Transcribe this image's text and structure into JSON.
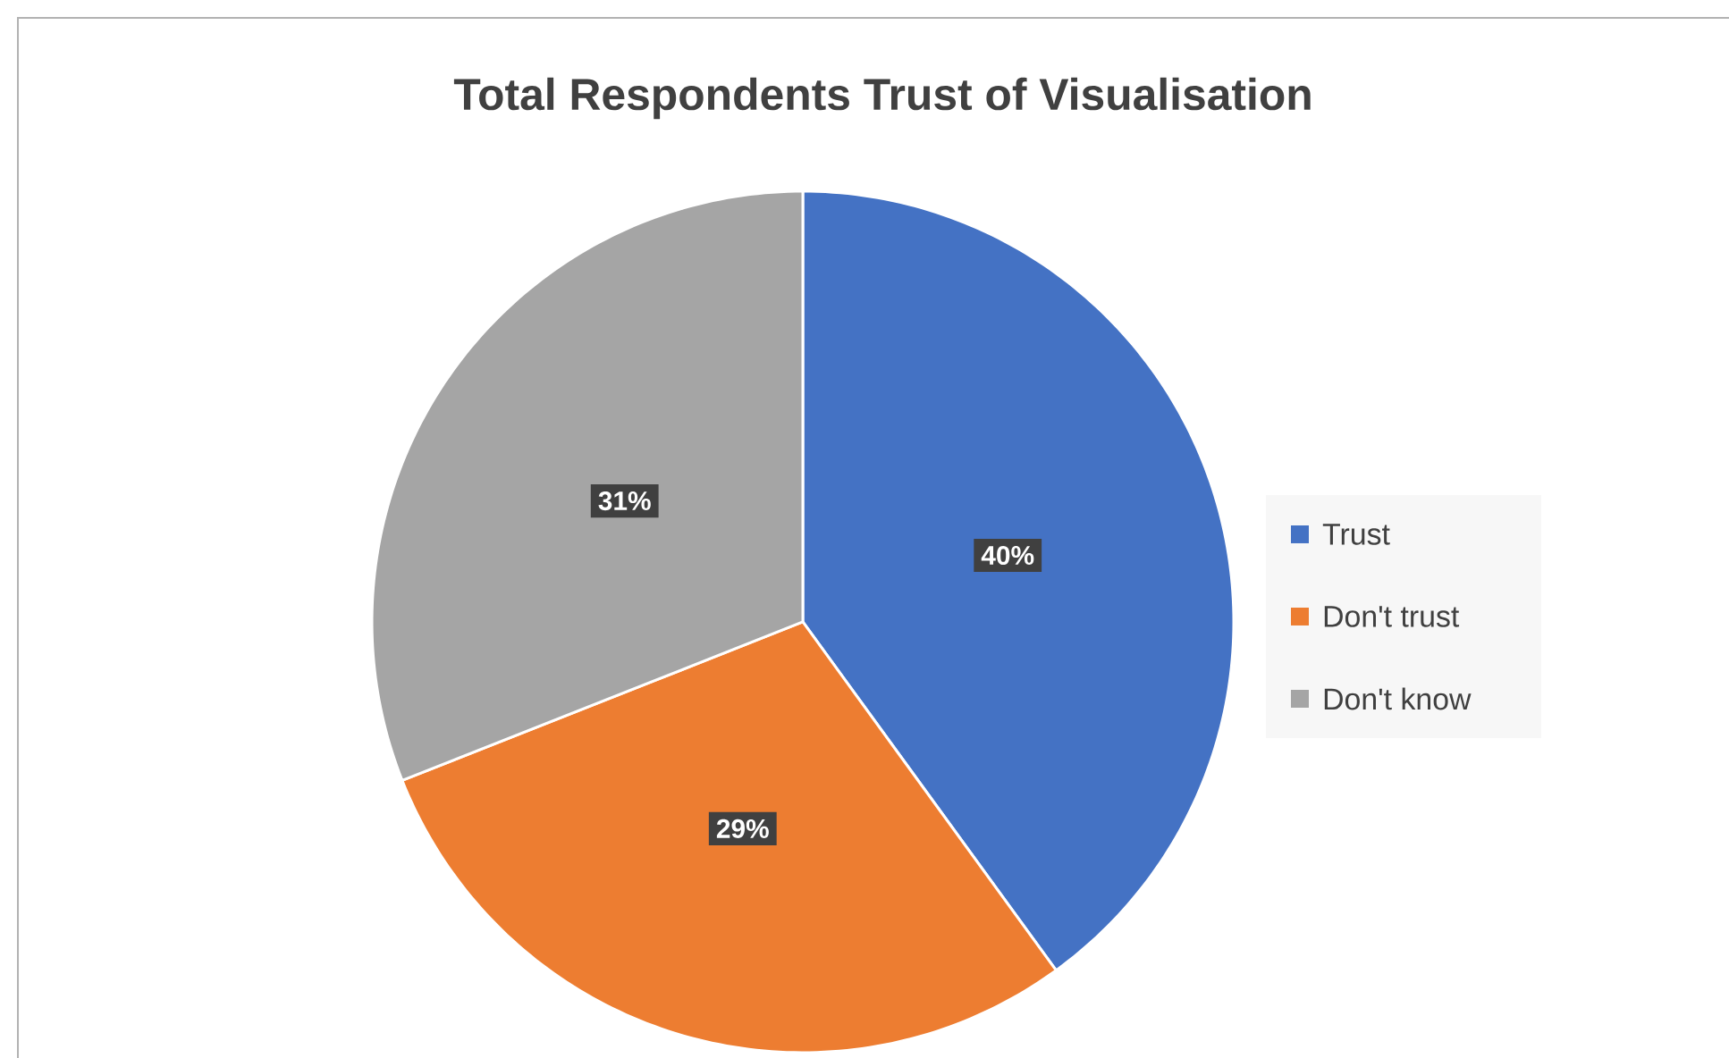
{
  "chart_data": {
    "type": "pie",
    "title": "Total Respondents Trust of Visualisation",
    "categories": [
      "Trust",
      "Don't trust",
      "Don't know"
    ],
    "values": [
      40,
      29,
      31
    ],
    "value_labels": [
      "40%",
      "29%",
      "31%"
    ],
    "colors": [
      "#4472c4",
      "#ed7d31",
      "#a5a5a5"
    ],
    "legend": "right"
  }
}
